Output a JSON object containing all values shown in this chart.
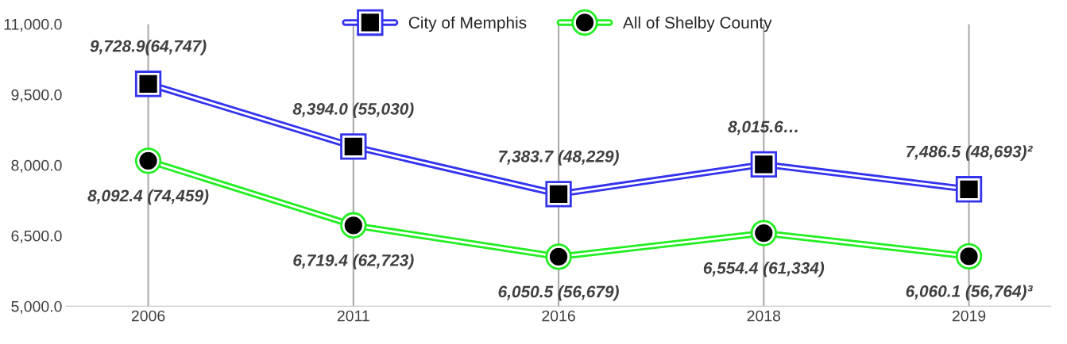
{
  "chart_data": {
    "type": "line",
    "categories": [
      "2006",
      "2011",
      "2016",
      "2018",
      "2019"
    ],
    "series": [
      {
        "name": "City of Memphis",
        "color": "#3333ee",
        "marker": "square",
        "values": [
          9728.9,
          8394.0,
          7383.7,
          8015.6,
          7486.5
        ],
        "value_labels": [
          "9,728.9(64,747)",
          "8,394.0 (55,030)",
          "7,383.7 (48,229)",
          "8,015.6…",
          "7,486.5 (48,693)²"
        ]
      },
      {
        "name": "All of Shelby County",
        "color": "#22ee22",
        "marker": "circle",
        "values": [
          8092.4,
          6719.4,
          6050.5,
          6554.4,
          6060.1
        ],
        "value_labels": [
          "8,092.4 (74,459)",
          "6,719.4 (62,723)",
          "6,050.5 (56,679)",
          "6,554.4 (61,334)",
          "6,060.1 (56,764)³"
        ]
      }
    ],
    "ylim": [
      5000,
      11000
    ],
    "yticks": [
      {
        "value": 5000,
        "label": "5,000.0"
      },
      {
        "value": 6500,
        "label": "6,500.0"
      },
      {
        "value": 8000,
        "label": "8,000.0"
      },
      {
        "value": 9500,
        "label": "9,500.0"
      },
      {
        "value": 11000,
        "label": "11,000.0"
      }
    ],
    "grid": "x",
    "legend": "top",
    "line_style": "solid"
  }
}
